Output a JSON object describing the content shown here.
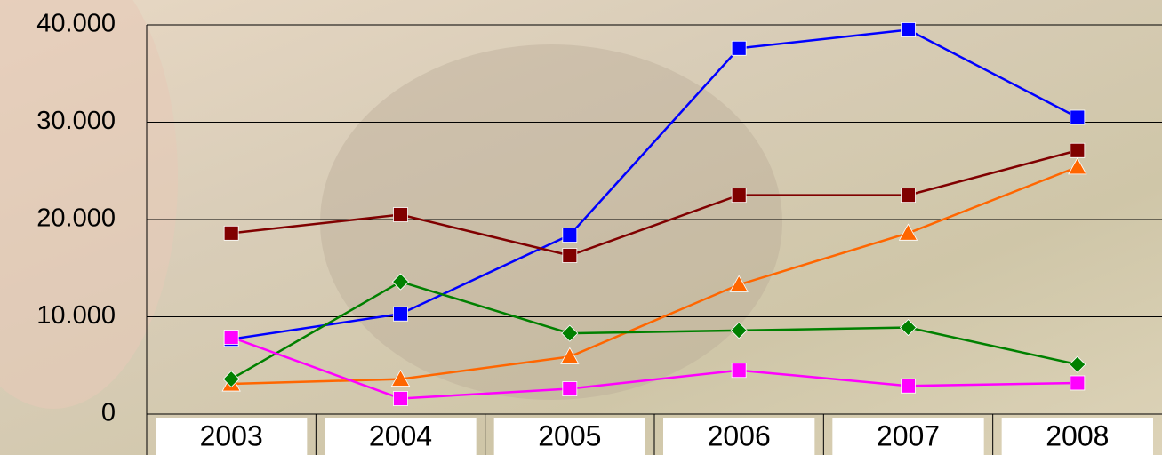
{
  "chart_data": {
    "type": "line",
    "categories": [
      "2003",
      "2004",
      "2005",
      "2006",
      "2007",
      "2008"
    ],
    "series": [
      {
        "color": "#0000ff",
        "marker": "square",
        "values": [
          7700,
          10300,
          18400,
          37600,
          39500,
          30500
        ]
      },
      {
        "color": "#800000",
        "marker": "square",
        "values": [
          18600,
          20500,
          16300,
          22500,
          22500,
          27100
        ]
      },
      {
        "color": "#ff6600",
        "marker": "triangle",
        "values": [
          3100,
          3600,
          5900,
          13300,
          18600,
          25400
        ]
      },
      {
        "color": "#008000",
        "marker": "diamond",
        "values": [
          3600,
          13600,
          8300,
          8600,
          8900,
          5100
        ]
      },
      {
        "color": "#ff00ff",
        "marker": "square",
        "values": [
          7900,
          1600,
          2600,
          4500,
          2900,
          3200
        ]
      }
    ],
    "ylim": [
      0,
      40000
    ],
    "yticks": [
      0,
      {
        "value": 10000,
        "label": "10.000"
      },
      {
        "value": 20000,
        "label": "20.000"
      },
      {
        "value": 30000,
        "label": "30.000"
      },
      {
        "value": 40000,
        "label": "40.000"
      }
    ],
    "grid": true
  }
}
